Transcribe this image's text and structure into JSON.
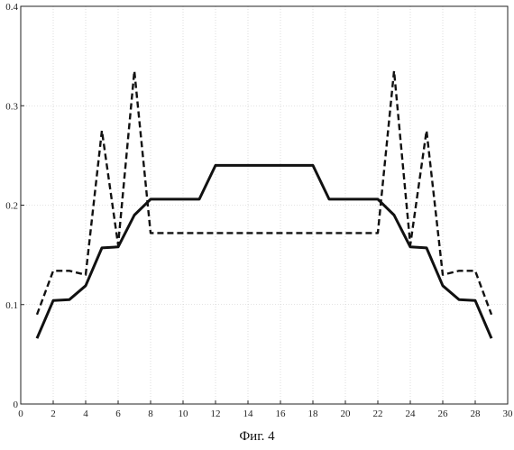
{
  "caption": "Фиг. 4",
  "chart_data": {
    "type": "line",
    "title": "",
    "xlabel": "",
    "ylabel": "",
    "xlim": [
      0,
      30
    ],
    "ylim": [
      0,
      0.4
    ],
    "x_ticks": [
      0,
      2,
      4,
      6,
      8,
      10,
      12,
      14,
      16,
      18,
      20,
      22,
      24,
      26,
      28,
      30
    ],
    "y_ticks": [
      0,
      0.1,
      0.2,
      0.3,
      0.4
    ],
    "grid": true,
    "series": [
      {
        "style": "solid",
        "color": "#111111",
        "x": [
          1,
          2,
          3,
          4,
          5,
          6,
          7,
          8,
          9,
          10,
          11,
          12,
          13,
          14,
          15,
          16,
          17,
          18,
          19,
          20,
          21,
          22,
          23,
          24,
          25,
          26,
          27,
          28,
          29
        ],
        "y": [
          0.066,
          0.104,
          0.105,
          0.119,
          0.157,
          0.158,
          0.19,
          0.206,
          0.206,
          0.206,
          0.206,
          0.24,
          0.24,
          0.24,
          0.24,
          0.24,
          0.24,
          0.24,
          0.206,
          0.206,
          0.206,
          0.206,
          0.19,
          0.158,
          0.157,
          0.119,
          0.105,
          0.104,
          0.066
        ]
      },
      {
        "style": "dashed",
        "color": "#111111",
        "x": [
          1,
          2,
          3,
          4,
          5,
          6,
          7,
          8,
          9,
          10,
          11,
          12,
          13,
          14,
          15,
          16,
          17,
          18,
          19,
          20,
          21,
          22,
          23,
          24,
          25,
          26,
          27,
          28,
          29
        ],
        "y": [
          0.09,
          0.134,
          0.134,
          0.13,
          0.275,
          0.16,
          0.335,
          0.172,
          0.172,
          0.172,
          0.172,
          0.172,
          0.172,
          0.172,
          0.172,
          0.172,
          0.172,
          0.172,
          0.172,
          0.172,
          0.172,
          0.172,
          0.335,
          0.16,
          0.275,
          0.13,
          0.134,
          0.134,
          0.09
        ]
      }
    ]
  }
}
